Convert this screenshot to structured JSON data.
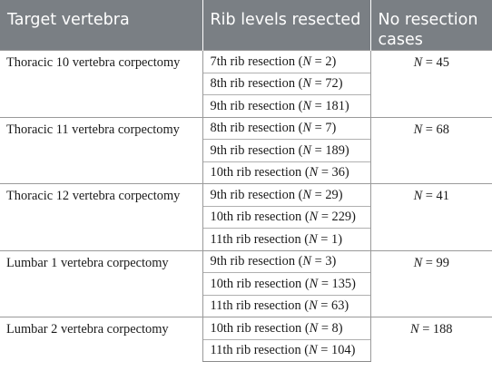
{
  "headers": [
    "Target vertebra",
    "Rib levels resected",
    "No resection cases"
  ],
  "groups": [
    {
      "target": "Thoracic 10 vertebra corpectomy",
      "no_resection": "45",
      "ribs": [
        {
          "label": "7th rib resection",
          "n": "2"
        },
        {
          "label": "8th rib resection",
          "n": "72"
        },
        {
          "label": "9th rib resection",
          "n": "181"
        }
      ]
    },
    {
      "target": "Thoracic 11 vertebra corpectomy",
      "no_resection": "68",
      "ribs": [
        {
          "label": "8th rib resection",
          "n": "7"
        },
        {
          "label": "9th rib resection",
          "n": "189"
        },
        {
          "label": "10th rib resection",
          "n": "36"
        }
      ]
    },
    {
      "target": "Thoracic 12 vertebra corpectomy",
      "no_resection": "41",
      "ribs": [
        {
          "label": "9th rib resection",
          "n": "29"
        },
        {
          "label": "10th rib resection",
          "n": "229"
        },
        {
          "label": "11th rib resection",
          "n": "1"
        }
      ]
    },
    {
      "target": "Lumbar 1 vertebra corpectomy",
      "no_resection": "99",
      "ribs": [
        {
          "label": "9th rib resection",
          "n": "3"
        },
        {
          "label": "10th rib resection",
          "n": "135"
        },
        {
          "label": "11th rib resection",
          "n": "63"
        }
      ]
    },
    {
      "target": "Lumbar 2 vertebra corpectomy",
      "no_resection": "188",
      "ribs": [
        {
          "label": "10th rib resection",
          "n": "8"
        },
        {
          "label": "11th rib resection",
          "n": "104"
        }
      ]
    }
  ]
}
